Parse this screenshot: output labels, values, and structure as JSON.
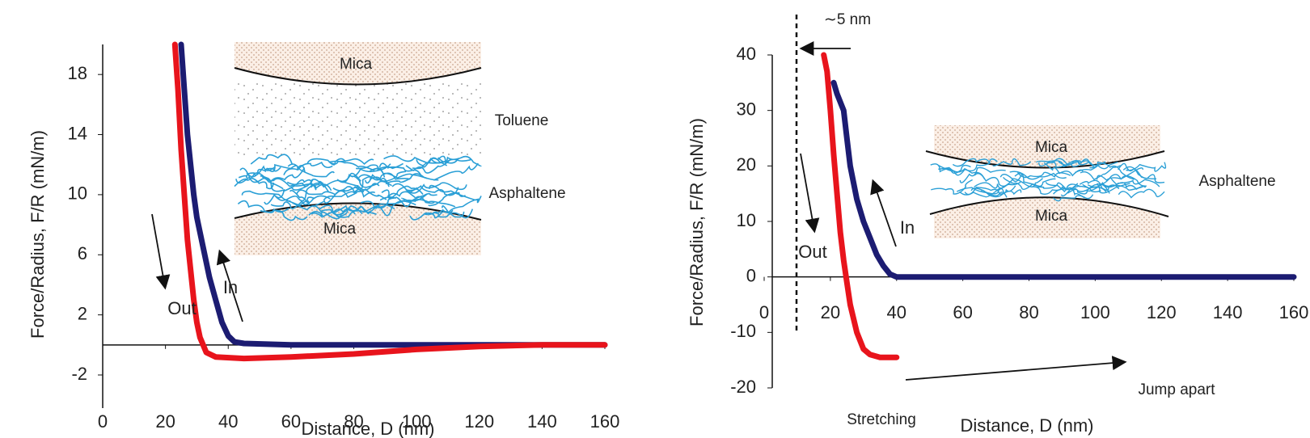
{
  "chart_data": [
    {
      "type": "line",
      "xlabel": "Distance, D (nm)",
      "ylabel": "Force/Radius, F/R (mN/m)",
      "xlim": [
        0,
        160
      ],
      "ylim": [
        -2,
        20
      ],
      "xticks": [
        0,
        20,
        40,
        60,
        80,
        100,
        120,
        140,
        160
      ],
      "yticks": [
        -2,
        2,
        6,
        10,
        14,
        18
      ],
      "series": [
        {
          "name": "In",
          "color": "#1c1c72",
          "x": [
            25,
            26,
            27,
            28,
            29,
            30,
            32,
            34,
            36,
            38,
            40,
            42,
            45,
            60,
            100,
            160
          ],
          "values": [
            20,
            17,
            14,
            12,
            10,
            8.5,
            6.5,
            4.5,
            3,
            1.5,
            0.6,
            0.2,
            0.1,
            0,
            0,
            0
          ]
        },
        {
          "name": "Out",
          "color": "#e8141c",
          "x": [
            23,
            24,
            25,
            26,
            27,
            28,
            29,
            30,
            31,
            33,
            36,
            45,
            60,
            80,
            100,
            120,
            140,
            160
          ],
          "values": [
            20,
            17,
            13,
            10,
            7,
            5,
            3,
            1.5,
            0.5,
            -0.5,
            -0.8,
            -0.9,
            -0.8,
            -0.6,
            -0.3,
            -0.1,
            0,
            0
          ]
        }
      ],
      "annotations": [
        "Mica",
        "Mica",
        "Toluene",
        "Asphaltene"
      ]
    },
    {
      "type": "line",
      "xlabel": "Distance, D (nm)",
      "ylabel": "Force/Radius, F/R (mN/m)",
      "xlim": [
        0,
        160
      ],
      "ylim": [
        -20,
        40
      ],
      "xticks": [
        0,
        20,
        40,
        60,
        80,
        100,
        120,
        140,
        160
      ],
      "yticks": [
        -20,
        -10,
        0,
        10,
        20,
        30,
        40
      ],
      "series": [
        {
          "name": "In",
          "color": "#1c1c72",
          "x": [
            21,
            22,
            24,
            25,
            26,
            27,
            28,
            30,
            32,
            34,
            36,
            38,
            40,
            160
          ],
          "values": [
            35,
            33,
            30,
            25,
            20,
            17,
            14,
            10,
            7,
            4,
            2,
            0.5,
            0,
            0
          ]
        },
        {
          "name": "Out",
          "color": "#e8141c",
          "x": [
            18,
            19,
            20,
            21,
            22,
            23,
            24,
            25,
            26,
            28,
            30,
            32,
            35,
            40
          ],
          "values": [
            40,
            37,
            30,
            22,
            15,
            8,
            3,
            -1,
            -5,
            -10,
            -13,
            -14,
            -14.5,
            -14.5
          ]
        }
      ],
      "annotations": [
        "∼5 nm",
        "Mica",
        "Mica",
        "Asphaltene",
        "Jump apart",
        "Stretching"
      ]
    }
  ]
}
